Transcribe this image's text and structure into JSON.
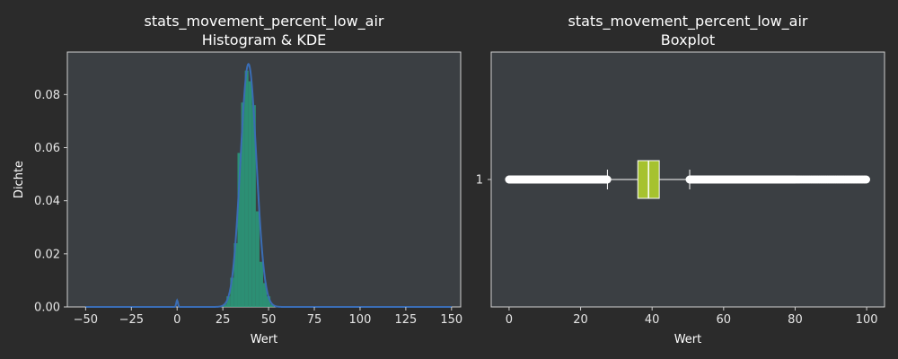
{
  "theme": {
    "background": "#2b2b2b",
    "axes_bg": "#3b3f43",
    "text": "#ffffff",
    "tick_text": "#e6e6e6",
    "spine": "#cfcfcf",
    "hist_fill": "#2a9d7d",
    "kde_line": "#3a6db5",
    "box_fill": "#a6c22f",
    "whisker": "#ffffff",
    "flier": "#ffffff"
  },
  "chart_data": [
    {
      "type": "bar",
      "subtype": "histogram-kde",
      "title": "stats_movement_percent_low_air",
      "subtitle": "Histogram & KDE",
      "xlabel": "Wert",
      "ylabel": "Dichte",
      "xlim": [
        -60,
        155
      ],
      "ylim": [
        0,
        0.096
      ],
      "xticks": [
        -50,
        -25,
        0,
        25,
        50,
        75,
        100,
        125,
        150
      ],
      "yticks": [
        0.0,
        0.02,
        0.04,
        0.06,
        0.08
      ],
      "ytick_labels": [
        "0.00",
        "0.02",
        "0.04",
        "0.06",
        "0.08"
      ],
      "bins": [
        {
          "x0": 25,
          "x1": 27,
          "value": 0.001
        },
        {
          "x0": 27,
          "x1": 29,
          "value": 0.004
        },
        {
          "x0": 29,
          "x1": 31,
          "value": 0.011
        },
        {
          "x0": 31,
          "x1": 33,
          "value": 0.024
        },
        {
          "x0": 33,
          "x1": 35,
          "value": 0.058
        },
        {
          "x0": 35,
          "x1": 37,
          "value": 0.077
        },
        {
          "x0": 37,
          "x1": 39,
          "value": 0.089
        },
        {
          "x0": 39,
          "x1": 41,
          "value": 0.085
        },
        {
          "x0": 41,
          "x1": 43,
          "value": 0.076
        },
        {
          "x0": 43,
          "x1": 45,
          "value": 0.036
        },
        {
          "x0": 45,
          "x1": 47,
          "value": 0.017
        },
        {
          "x0": 47,
          "x1": 49,
          "value": 0.009
        },
        {
          "x0": 49,
          "x1": 51,
          "value": 0.004
        },
        {
          "x0": 51,
          "x1": 53,
          "value": 0.001
        }
      ],
      "kde": {
        "components": [
          {
            "mean": 39,
            "sd": 4.35,
            "peak": 0.0915
          },
          {
            "mean": 0,
            "sd": 0.45,
            "peak": 0.0025
          }
        ],
        "x_range": [
          -50,
          150
        ]
      }
    },
    {
      "type": "boxplot",
      "title": "stats_movement_percent_low_air",
      "subtitle": "Boxplot",
      "xlabel": "Wert",
      "xlim": [
        -5,
        105
      ],
      "xticks": [
        0,
        20,
        40,
        60,
        80,
        100
      ],
      "category": "1",
      "box": {
        "whisker_low": 27.5,
        "q1": 36,
        "median": 39,
        "q3": 42,
        "whisker_high": 50.5
      },
      "fliers": {
        "low_range": [
          0,
          27.5
        ],
        "high_range": [
          50.5,
          100
        ],
        "sparse_from": 80
      }
    }
  ]
}
